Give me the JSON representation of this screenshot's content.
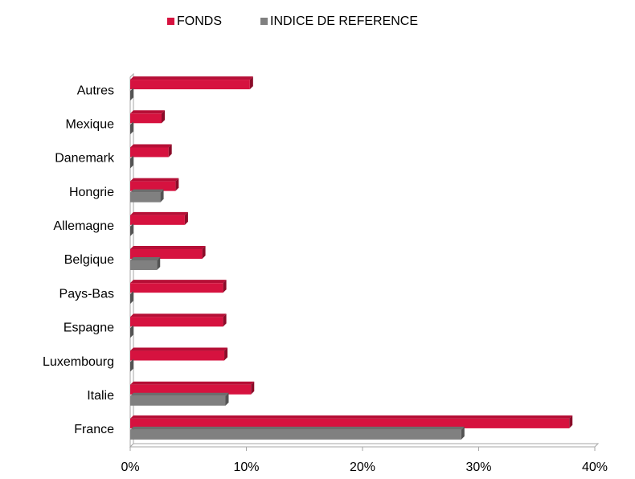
{
  "chart_data": {
    "type": "bar",
    "orientation": "horizontal",
    "categories": [
      "France",
      "Italie",
      "Luxembourg",
      "Espagne",
      "Pays-Bas",
      "Belgique",
      "Allemagne",
      "Hongrie",
      "Danemark",
      "Mexique",
      "Autres"
    ],
    "series": [
      {
        "name": "FONDS",
        "color": "#d6123f",
        "values": [
          37.8,
          10.4,
          8.1,
          8.0,
          8.0,
          6.2,
          4.7,
          3.9,
          3.3,
          2.7,
          10.3
        ]
      },
      {
        "name": "INDICE DE REFERENCE",
        "color": "#808080",
        "values": [
          28.5,
          8.2,
          0,
          0,
          0,
          2.3,
          0,
          2.6,
          0,
          0,
          0
        ]
      }
    ],
    "xlim": [
      0,
      40
    ],
    "xticks": [
      {
        "value": 0,
        "label": "0%"
      },
      {
        "value": 10,
        "label": "10%"
      },
      {
        "value": 20,
        "label": "20%"
      },
      {
        "value": 30,
        "label": "30%"
      },
      {
        "value": 40,
        "label": "40%"
      }
    ],
    "legend": "top"
  }
}
